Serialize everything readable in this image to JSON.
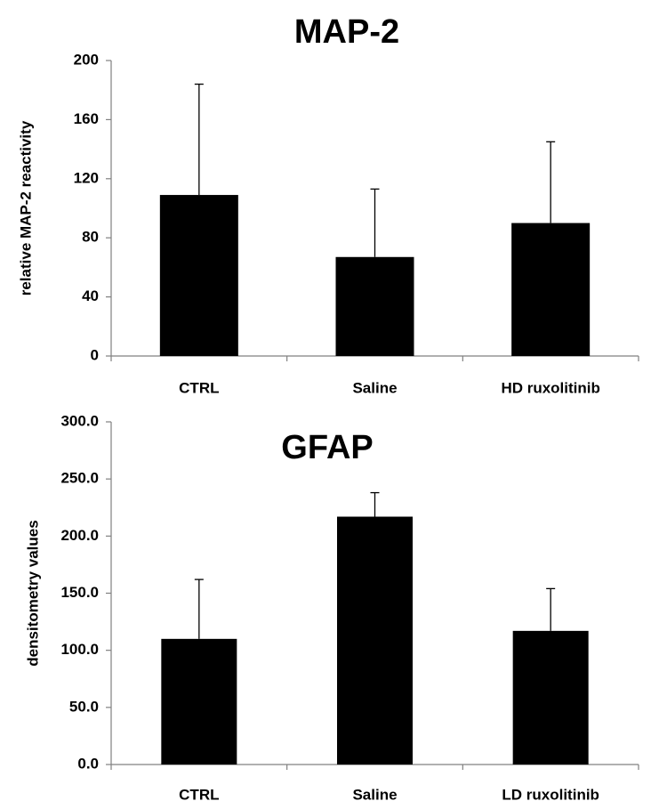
{
  "chart_data": [
    {
      "type": "bar",
      "title": "MAP-2",
      "ylabel": "relative MAP-2 reactivity",
      "xlabel": "",
      "categories": [
        "CTRL",
        "Saline",
        "HD ruxolitinib"
      ],
      "values": [
        109,
        67,
        90
      ],
      "error_upper": [
        75,
        46,
        55
      ],
      "ylim": [
        0,
        200
      ],
      "yticks": [
        "0",
        "40",
        "80",
        "120",
        "160",
        "200"
      ],
      "ytick_values": [
        0,
        40,
        80,
        120,
        160,
        200
      ],
      "bar_color": "#000000",
      "grid": false
    },
    {
      "type": "bar",
      "title": "GFAP",
      "ylabel": "densitometry values",
      "xlabel": "",
      "categories": [
        "CTRL",
        "Saline",
        "LD ruxolitinib"
      ],
      "values": [
        110,
        217,
        117
      ],
      "error_upper": [
        52,
        21,
        37
      ],
      "ylim": [
        0,
        300
      ],
      "yticks": [
        "0.0",
        "50.0",
        "100.0",
        "150.0",
        "200.0",
        "250.0",
        "300.0"
      ],
      "ytick_values": [
        0,
        50,
        100,
        150,
        200,
        250,
        300
      ],
      "bar_color": "#000000",
      "grid": false
    }
  ]
}
